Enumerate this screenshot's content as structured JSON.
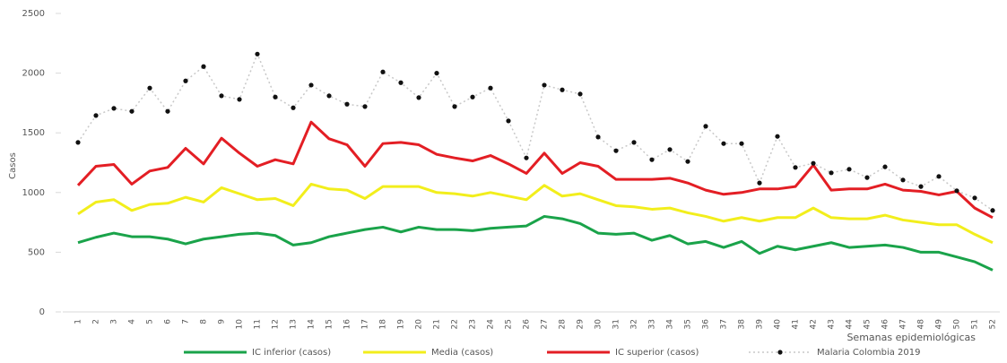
{
  "chart_data": {
    "type": "line",
    "y_label": "Casos",
    "x_label": "Semanas epidemiológicas",
    "categories": [
      "1",
      "2",
      "3",
      "4",
      "5",
      "6",
      "7",
      "8",
      "9",
      "10",
      "11",
      "12",
      "13",
      "14",
      "15",
      "16",
      "17",
      "18",
      "19",
      "20",
      "21",
      "22",
      "23",
      "24",
      "25",
      "26",
      "27",
      "28",
      "29",
      "30",
      "31",
      "32",
      "33",
      "34",
      "35",
      "36",
      "37",
      "38",
      "39",
      "40",
      "41",
      "42",
      "43",
      "44",
      "45",
      "46",
      "47",
      "48",
      "49",
      "50",
      "51",
      "52"
    ],
    "ylim": [
      0,
      2500
    ],
    "yticks": [
      0,
      500,
      1000,
      1500,
      2000,
      2500
    ],
    "legend": "bottom",
    "series": [
      {
        "name": "IC inferior (casos)",
        "color": "#1aa34a",
        "values": [
          580,
          625,
          660,
          630,
          630,
          610,
          570,
          610,
          630,
          650,
          660,
          640,
          560,
          580,
          630,
          660,
          690,
          710,
          670,
          710,
          690,
          690,
          680,
          700,
          710,
          720,
          800,
          780,
          740,
          660,
          650,
          660,
          600,
          640,
          570,
          590,
          540,
          590,
          490,
          550,
          520,
          550,
          580,
          540,
          550,
          560,
          540,
          500,
          500,
          460,
          420,
          350
        ]
      },
      {
        "name": "Media (casos)",
        "color": "#f2ee1c",
        "values": [
          820,
          920,
          940,
          850,
          900,
          910,
          960,
          920,
          1040,
          990,
          940,
          950,
          890,
          1070,
          1030,
          1020,
          950,
          1050,
          1050,
          1050,
          1000,
          990,
          970,
          1000,
          970,
          940,
          1060,
          970,
          990,
          940,
          890,
          880,
          860,
          870,
          830,
          800,
          760,
          790,
          760,
          790,
          790,
          870,
          790,
          780,
          780,
          810,
          770,
          750,
          730,
          730,
          650,
          580
        ]
      },
      {
        "name": "IC superior (casos)",
        "color": "#e31e24",
        "values": [
          1060,
          1220,
          1235,
          1070,
          1180,
          1210,
          1370,
          1240,
          1455,
          1330,
          1220,
          1275,
          1240,
          1590,
          1450,
          1400,
          1220,
          1410,
          1420,
          1400,
          1320,
          1290,
          1265,
          1310,
          1240,
          1160,
          1330,
          1160,
          1250,
          1220,
          1110,
          1110,
          1110,
          1120,
          1080,
          1020,
          985,
          1000,
          1030,
          1030,
          1050,
          1230,
          1020,
          1030,
          1030,
          1070,
          1020,
          1010,
          980,
          1010,
          870,
          790
        ]
      },
      {
        "name": "Malaria Colombia 2019",
        "color": "#111111",
        "markers": true,
        "line_style": "dotted",
        "values": [
          1420,
          1645,
          1705,
          1680,
          1875,
          1680,
          1935,
          2055,
          1810,
          1780,
          2160,
          1800,
          1710,
          1900,
          1810,
          1740,
          1720,
          2010,
          1920,
          1795,
          2000,
          1720,
          1800,
          1875,
          1600,
          1290,
          1900,
          1860,
          1825,
          1465,
          1350,
          1420,
          1275,
          1360,
          1260,
          1555,
          1410,
          1410,
          1080,
          1470,
          1210,
          1245,
          1165,
          1195,
          1125,
          1215,
          1105,
          1050,
          1135,
          1015,
          955,
          850
        ]
      }
    ]
  }
}
